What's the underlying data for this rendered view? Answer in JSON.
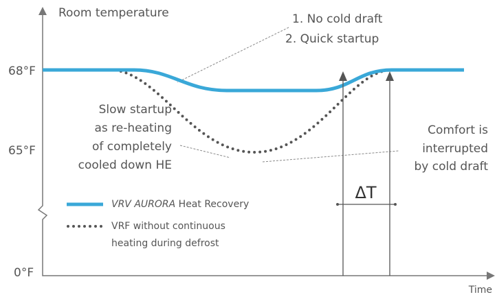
{
  "axis": {
    "y_label": "Room temperature",
    "x_label": "Time",
    "y_ticks": [
      "68°F",
      "65°F",
      "0°F"
    ]
  },
  "callout_top": [
    "1. No cold draft",
    "2. Quick startup"
  ],
  "callout_left": [
    "Slow startup",
    "as re-heating",
    "of completely",
    "cooled down HE"
  ],
  "callout_right": [
    "Comfort is",
    "interrupted",
    "by cold draft"
  ],
  "delta_label": "ΔT",
  "legend": [
    {
      "name_italic": "VRV AURORA",
      "name_rest": " Heat Recovery"
    },
    {
      "lines": [
        "VRF without continuous",
        "heating during defrost"
      ]
    }
  ]
}
